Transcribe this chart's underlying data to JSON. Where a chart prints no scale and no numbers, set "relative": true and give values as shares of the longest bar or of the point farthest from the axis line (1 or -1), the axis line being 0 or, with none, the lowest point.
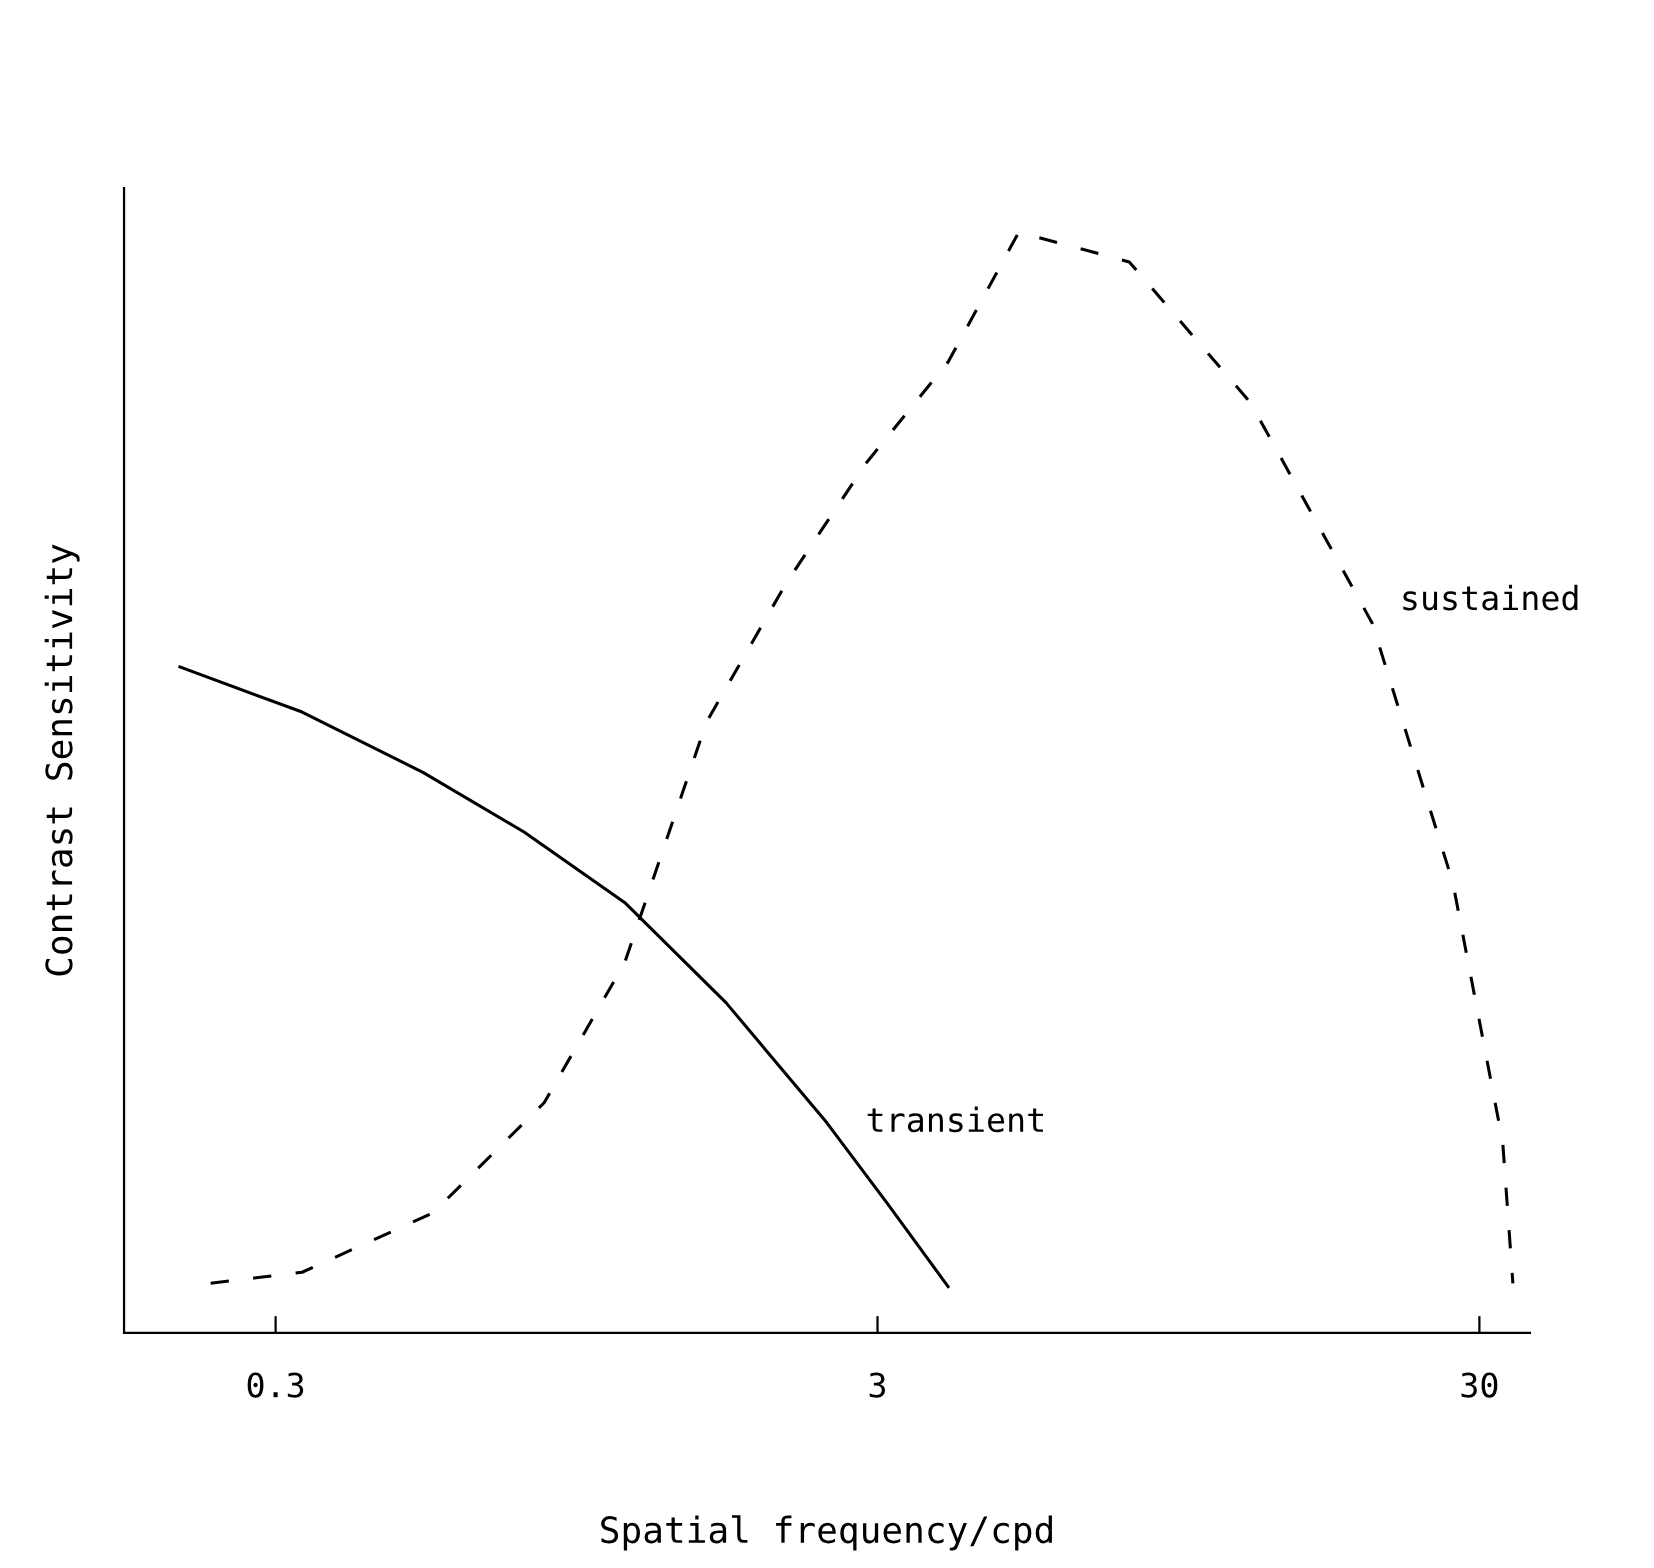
{
  "chart_data": {
    "type": "line",
    "relative": true,
    "log": "x",
    "xlabel": "Spatial frequency/cpd",
    "ylabel": "Contrast Sensitivity",
    "xlim": [
      0.168,
      36.4
    ],
    "xticks": [
      0.3,
      3,
      30
    ],
    "grid": false,
    "legend": false,
    "series": [
      {
        "name": "transient",
        "color": "#000000",
        "line_style": "solid",
        "x": [
          0.208,
          0.332,
          0.528,
          0.776,
          1.14,
          1.68,
          2.47,
          3.11,
          3.93
        ],
        "values": [
          0.605,
          0.564,
          0.509,
          0.455,
          0.391,
          0.3,
          0.191,
          0.118,
          0.042
        ]
      },
      {
        "name": "sustained",
        "color": "#000000",
        "line_style": "dashed",
        "x": [
          0.234,
          0.332,
          0.548,
          0.838,
          1.14,
          1.56,
          2.12,
          2.88,
          3.93,
          5.15,
          7.86,
          12.5,
          19.9,
          27.1,
          32.8,
          34.1
        ],
        "values": [
          0.045,
          0.055,
          0.109,
          0.209,
          0.336,
          0.555,
          0.682,
          0.791,
          0.882,
          1.0,
          0.973,
          0.845,
          0.645,
          0.409,
          0.173,
          0.045
        ]
      }
    ]
  }
}
